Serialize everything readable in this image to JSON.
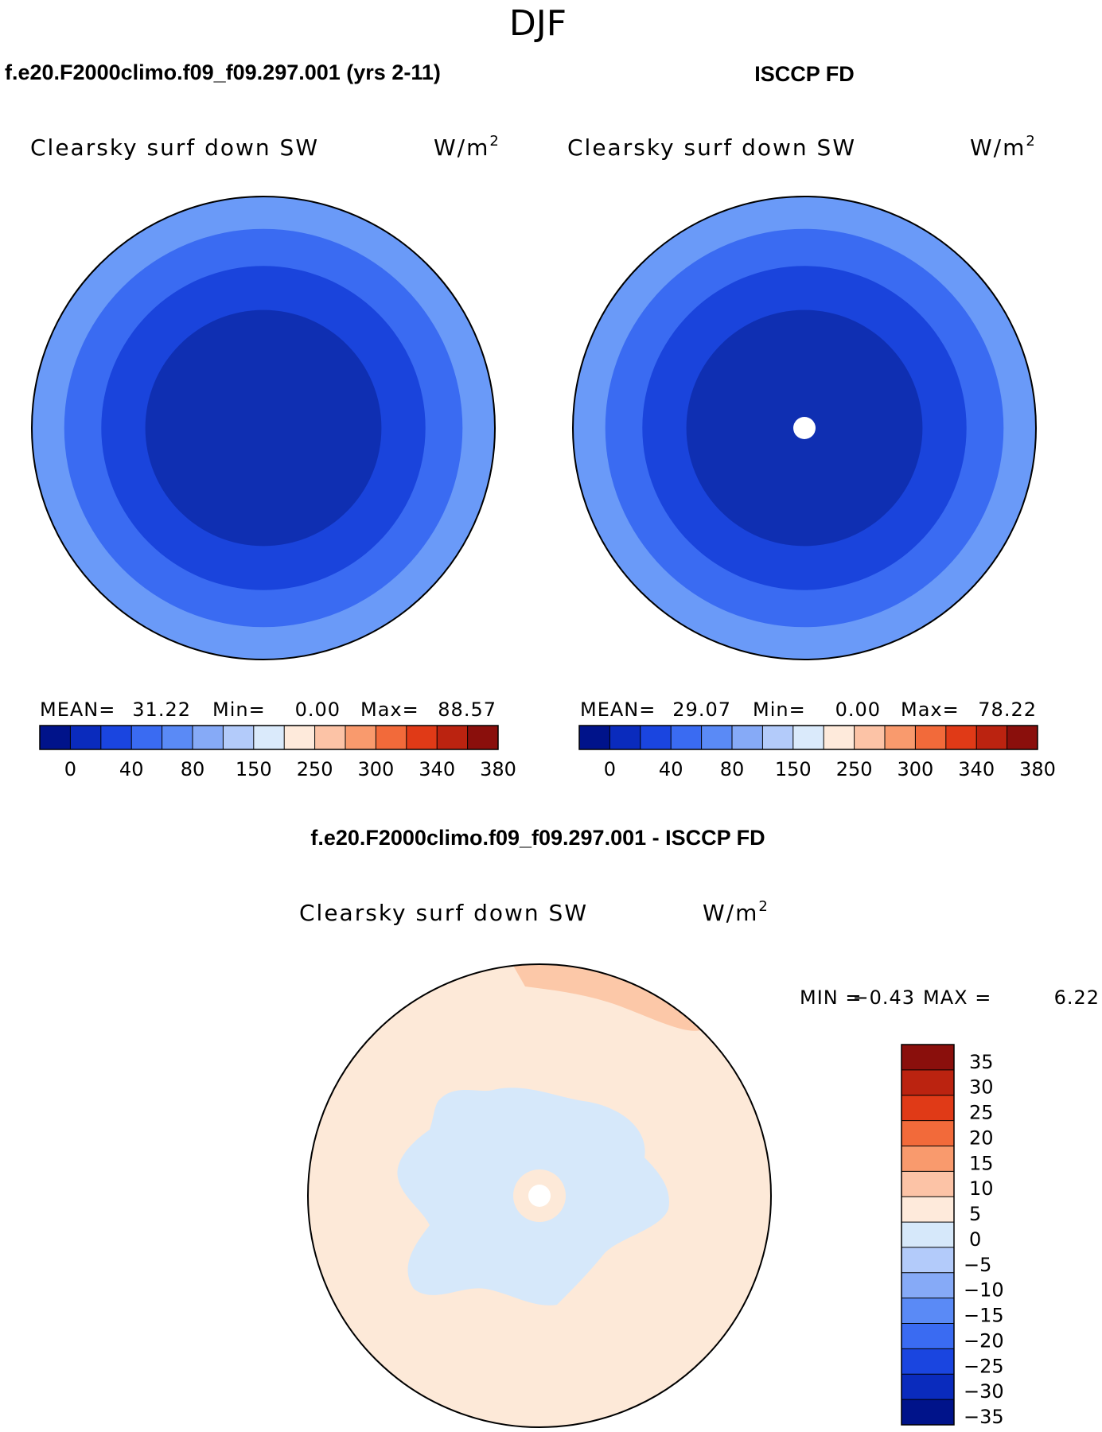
{
  "season": "DJF",
  "chart_data": [
    {
      "type": "heatmap",
      "projection": "north-polar-stereographic",
      "case_title": "f.e20.F2000climo.f09_f09.297.001 (yrs 2-11)",
      "variable": "Clearsky surf down SW",
      "units": "W/m",
      "units_exp": "2",
      "stats": {
        "mean_label": "MEAN=",
        "mean": "31.22",
        "min_label": "Min=",
        "min": "0.00",
        "max_label": "Max=",
        "max": "88.57"
      },
      "contour_rings": [
        {
          "level": 80,
          "color": "#6a9af8"
        },
        {
          "level": 40,
          "color": "#3a6bf2"
        },
        {
          "level": 20,
          "color": "#1a44dc"
        },
        {
          "level": 0,
          "color": "#0f2fb2"
        }
      ],
      "has_missing_pole": false
    },
    {
      "type": "heatmap",
      "projection": "north-polar-stereographic",
      "case_title": "ISCCP FD",
      "variable": "Clearsky surf down SW",
      "units": "W/m",
      "units_exp": "2",
      "stats": {
        "mean_label": "MEAN=",
        "mean": "29.07",
        "min_label": "Min=",
        "min": "0.00",
        "max_label": "Max=",
        "max": "78.22"
      },
      "contour_rings": [
        {
          "level": 80,
          "color": "#6a9af8"
        },
        {
          "level": 40,
          "color": "#3a6bf2"
        },
        {
          "level": 20,
          "color": "#1a44dc"
        },
        {
          "level": 0,
          "color": "#0f2fb2"
        }
      ],
      "has_missing_pole": true
    },
    {
      "type": "heatmap",
      "projection": "north-polar-stereographic",
      "case_title": "f.e20.F2000climo.f09_f09.297.001 - ISCCP FD",
      "variable": "Clearsky surf down SW",
      "units": "W/m",
      "units_exp": "2",
      "stats": {
        "min_label": "MIN =",
        "min": "−0.43",
        "max_label": "MAX =",
        "max": "6.22"
      },
      "has_missing_pole": true
    }
  ],
  "colorbar_top": {
    "colors": [
      "#00138a",
      "#0a2bbd",
      "#1a45e0",
      "#3a6bf2",
      "#5a8af6",
      "#86aaf7",
      "#b3cbfa",
      "#daeafb",
      "#feeadb",
      "#fcc3a6",
      "#f99a6d",
      "#f26a3a",
      "#e03a17",
      "#bb2310",
      "#8a0f0c"
    ],
    "tick_labels": [
      "0",
      "40",
      "80",
      "150",
      "250",
      "300",
      "340",
      "380"
    ]
  },
  "colorbar_diff": {
    "colors": [
      "#8a0f0c",
      "#bb2310",
      "#e03a17",
      "#f26a3a",
      "#f99a6d",
      "#fcc3a6",
      "#feeadb",
      "#d6e8fa",
      "#b3cbfa",
      "#86aaf7",
      "#5a8af6",
      "#3a6bf2",
      "#1a45e0",
      "#0a2bbd",
      "#00138a"
    ],
    "tick_labels": [
      "35",
      "30",
      "25",
      "20",
      "15",
      "10",
      "5",
      "0",
      "−5",
      "−10",
      "−15",
      "−20",
      "−25",
      "−30",
      "−35"
    ]
  }
}
